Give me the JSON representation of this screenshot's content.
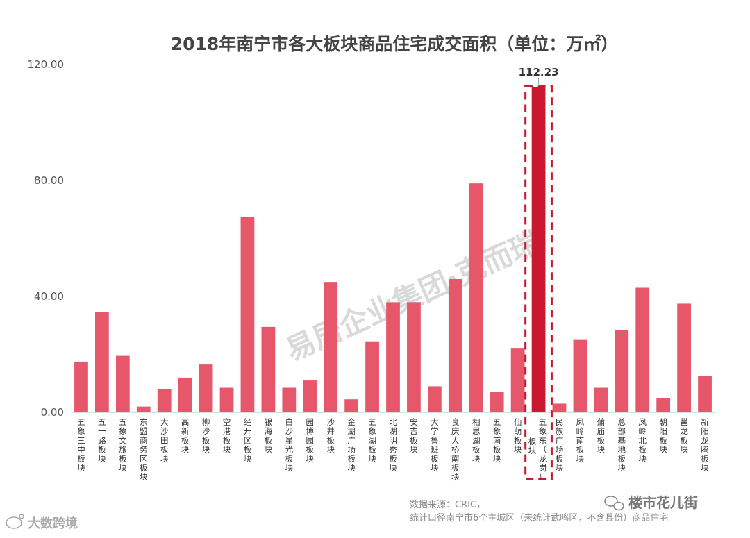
{
  "chart_data": {
    "type": "bar",
    "title": "2018年南宁市各大板块商品住宅成交面积（单位：万㎡）",
    "ylim": [
      0,
      120
    ],
    "yticks": [
      "0.00",
      "40.00",
      "80.00",
      "120.00"
    ],
    "categories": [
      "五象三中板块",
      "五一路板块",
      "五象文旅板块",
      "东盟商务区板块",
      "大沙田板块",
      "高新板块",
      "柳沙板块",
      "空港板块",
      "经开区板块",
      "银海板块",
      "白沙星光板块",
      "园博园板块",
      "沙井板块",
      "金湖广场板块",
      "五象湖板块",
      "北湖明秀板块",
      "安吉板块",
      "大学鲁班板块",
      "良庆大桥南板块",
      "相思湖板块",
      "五象南板块",
      "仙葫板块",
      "五象东（龙岗）板块",
      "民族广场板块",
      "凤岭南板块",
      "蒲庙板块",
      "总部基地板块",
      "凤岭北板块",
      "朝阳板块",
      "邕龙板块",
      "新阳龙腾板块"
    ],
    "values": [
      17.5,
      34.5,
      19.5,
      2,
      8,
      12,
      16.5,
      8.5,
      67.5,
      29.5,
      8.5,
      11,
      45,
      4.5,
      24.5,
      38,
      38,
      9,
      46,
      79,
      7,
      22,
      112.23,
      3,
      25,
      8.5,
      28.5,
      43,
      5,
      37.5,
      12.5
    ],
    "highlight_index": 22,
    "data_labels": [
      {
        "index": 22,
        "text": "112.23"
      }
    ],
    "colors": {
      "bar": "#e6576b",
      "highlight": "#c8192e",
      "frame": "#c8192e",
      "axis": "#bbbbbb"
    },
    "grid": false,
    "legend": false
  },
  "footer": {
    "source_line1": "数据来源：CRIC，",
    "source_line2": "统计口径南宁市6个主城区（未统计武鸣区，不含县份）商品住宅",
    "brand_right": "楼市花儿街",
    "brand_left": "大数跨境",
    "watermark": "易居企业集团·克而瑞"
  },
  "icons": {
    "brand_right_icon": "wechat-icon",
    "brand_left_icon": "weibo-icon"
  }
}
